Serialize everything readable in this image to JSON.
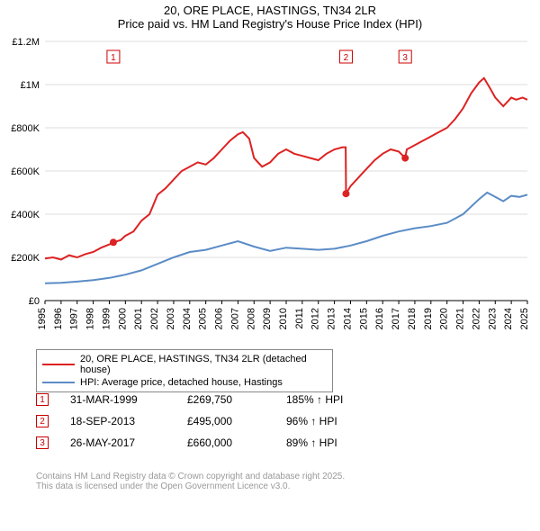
{
  "title_line1": "20, ORE PLACE, HASTINGS, TN34 2LR",
  "title_line2": "Price paid vs. HM Land Registry's House Price Index (HPI)",
  "chart": {
    "type": "line",
    "background_color": "#ffffff",
    "grid_color": "#dddddd",
    "y": {
      "min": 0,
      "max": 1200000,
      "ticks": [
        0,
        200000,
        400000,
        600000,
        800000,
        1000000,
        1200000
      ],
      "labels": [
        "£0",
        "£200K",
        "£400K",
        "£600K",
        "£800K",
        "£1M",
        "£1.2M"
      ],
      "label_fontsize": 11
    },
    "x": {
      "min": 1995,
      "max": 2025,
      "ticks": [
        1995,
        1996,
        1997,
        1998,
        1999,
        2000,
        2001,
        2002,
        2003,
        2004,
        2005,
        2006,
        2007,
        2008,
        2009,
        2010,
        2011,
        2012,
        2013,
        2014,
        2015,
        2016,
        2017,
        2018,
        2019,
        2020,
        2021,
        2022,
        2023,
        2024,
        2025
      ],
      "label_fontsize": 11,
      "label_rotation": -90
    },
    "series": [
      {
        "name": "price_paid",
        "color": "#dd2222",
        "line_width": 2,
        "points": [
          [
            1995,
            195000
          ],
          [
            1995.5,
            200000
          ],
          [
            1996,
            190000
          ],
          [
            1996.5,
            210000
          ],
          [
            1997,
            200000
          ],
          [
            1997.5,
            215000
          ],
          [
            1998,
            225000
          ],
          [
            1998.5,
            245000
          ],
          [
            1999,
            260000
          ],
          [
            1999.25,
            269750
          ],
          [
            1999.7,
            280000
          ],
          [
            2000,
            300000
          ],
          [
            2000.5,
            320000
          ],
          [
            2001,
            370000
          ],
          [
            2001.5,
            400000
          ],
          [
            2002,
            490000
          ],
          [
            2002.5,
            520000
          ],
          [
            2003,
            560000
          ],
          [
            2003.5,
            600000
          ],
          [
            2004,
            620000
          ],
          [
            2004.5,
            640000
          ],
          [
            2005,
            630000
          ],
          [
            2005.5,
            660000
          ],
          [
            2006,
            700000
          ],
          [
            2006.5,
            740000
          ],
          [
            2007,
            770000
          ],
          [
            2007.3,
            780000
          ],
          [
            2007.7,
            750000
          ],
          [
            2008,
            660000
          ],
          [
            2008.5,
            620000
          ],
          [
            2009,
            640000
          ],
          [
            2009.5,
            680000
          ],
          [
            2010,
            700000
          ],
          [
            2010.5,
            680000
          ],
          [
            2011,
            670000
          ],
          [
            2011.5,
            660000
          ],
          [
            2012,
            650000
          ],
          [
            2012.5,
            680000
          ],
          [
            2013,
            700000
          ],
          [
            2013.5,
            710000
          ],
          [
            2013.7,
            710000
          ],
          [
            2013.72,
            495000
          ],
          [
            2014,
            530000
          ],
          [
            2014.5,
            570000
          ],
          [
            2015,
            610000
          ],
          [
            2015.5,
            650000
          ],
          [
            2016,
            680000
          ],
          [
            2016.5,
            700000
          ],
          [
            2017,
            690000
          ],
          [
            2017.4,
            660000
          ],
          [
            2017.5,
            700000
          ],
          [
            2018,
            720000
          ],
          [
            2018.5,
            740000
          ],
          [
            2019,
            760000
          ],
          [
            2019.5,
            780000
          ],
          [
            2020,
            800000
          ],
          [
            2020.5,
            840000
          ],
          [
            2021,
            890000
          ],
          [
            2021.5,
            960000
          ],
          [
            2022,
            1010000
          ],
          [
            2022.3,
            1030000
          ],
          [
            2022.7,
            980000
          ],
          [
            2023,
            940000
          ],
          [
            2023.5,
            900000
          ],
          [
            2024,
            940000
          ],
          [
            2024.3,
            930000
          ],
          [
            2024.7,
            940000
          ],
          [
            2025,
            930000
          ]
        ]
      },
      {
        "name": "hpi",
        "color": "#5b8cc6",
        "line_width": 2,
        "points": [
          [
            1995,
            80000
          ],
          [
            1996,
            82000
          ],
          [
            1997,
            88000
          ],
          [
            1998,
            95000
          ],
          [
            1999,
            105000
          ],
          [
            2000,
            120000
          ],
          [
            2001,
            140000
          ],
          [
            2002,
            170000
          ],
          [
            2003,
            200000
          ],
          [
            2004,
            225000
          ],
          [
            2005,
            235000
          ],
          [
            2006,
            255000
          ],
          [
            2007,
            275000
          ],
          [
            2008,
            250000
          ],
          [
            2009,
            230000
          ],
          [
            2010,
            245000
          ],
          [
            2011,
            240000
          ],
          [
            2012,
            235000
          ],
          [
            2013,
            240000
          ],
          [
            2014,
            255000
          ],
          [
            2015,
            275000
          ],
          [
            2016,
            300000
          ],
          [
            2017,
            320000
          ],
          [
            2018,
            335000
          ],
          [
            2019,
            345000
          ],
          [
            2020,
            360000
          ],
          [
            2021,
            400000
          ],
          [
            2022,
            470000
          ],
          [
            2022.5,
            500000
          ],
          [
            2023,
            480000
          ],
          [
            2023.5,
            460000
          ],
          [
            2024,
            485000
          ],
          [
            2024.5,
            480000
          ],
          [
            2025,
            490000
          ]
        ]
      }
    ],
    "sale_markers": [
      {
        "n": "1",
        "x": 1999.25,
        "y": 269750
      },
      {
        "n": "2",
        "x": 2013.72,
        "y": 495000
      },
      {
        "n": "3",
        "x": 2017.4,
        "y": 660000
      }
    ]
  },
  "legend": {
    "items": [
      {
        "color": "#dd2222",
        "label": "20, ORE PLACE, HASTINGS, TN34 2LR (detached house)"
      },
      {
        "color": "#5b8cc6",
        "label": "HPI: Average price, detached house, Hastings"
      }
    ]
  },
  "sales": [
    {
      "n": "1",
      "date": "31-MAR-1999",
      "price": "£269,750",
      "pct": "185% ↑ HPI"
    },
    {
      "n": "2",
      "date": "18-SEP-2013",
      "price": "£495,000",
      "pct": "96% ↑ HPI"
    },
    {
      "n": "3",
      "date": "26-MAY-2017",
      "price": "£660,000",
      "pct": "89% ↑ HPI"
    }
  ],
  "footer_line1": "Contains HM Land Registry data © Crown copyright and database right 2025.",
  "footer_line2": "This data is licensed under the Open Government Licence v3.0."
}
